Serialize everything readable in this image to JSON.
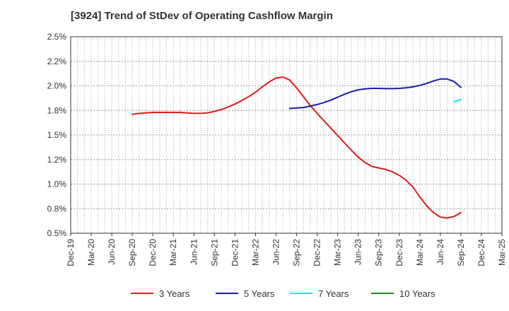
{
  "title": "[3924]  Trend of StDev of Operating Cashflow Margin",
  "chart_data": {
    "type": "line",
    "title": "[3924]  Trend of StDev of Operating Cashflow Margin",
    "xlabel": "",
    "ylabel": "",
    "ylim": [
      0.5,
      2.5
    ],
    "y_ticks": [
      "0.5%",
      "0.8%",
      "1.0%",
      "1.2%",
      "1.5%",
      "1.8%",
      "2.0%",
      "2.2%",
      "2.5%"
    ],
    "x_ticks": [
      "Dec-19",
      "Mar-20",
      "Jun-20",
      "Sep-20",
      "Dec-20",
      "Mar-21",
      "Jun-21",
      "Sep-21",
      "Dec-21",
      "Mar-22",
      "Jun-22",
      "Sep-22",
      "Dec-22",
      "Mar-23",
      "Jun-23",
      "Sep-23",
      "Dec-23",
      "Mar-24",
      "Jun-24",
      "Sep-24",
      "Dec-24",
      "Mar-25"
    ],
    "grid": true,
    "legend_position": "bottom",
    "series": [
      {
        "name": "3 Years",
        "color": "#dd1c1c",
        "points": [
          [
            "Sep-20",
            1.71
          ],
          [
            "Oct-20",
            1.72
          ],
          [
            "Nov-20",
            1.725
          ],
          [
            "Dec-20",
            1.73
          ],
          [
            "Jan-21",
            1.73
          ],
          [
            "Feb-21",
            1.73
          ],
          [
            "Mar-21",
            1.73
          ],
          [
            "Apr-21",
            1.73
          ],
          [
            "May-21",
            1.725
          ],
          [
            "Jun-21",
            1.72
          ],
          [
            "Jul-21",
            1.72
          ],
          [
            "Aug-21",
            1.725
          ],
          [
            "Sep-21",
            1.74
          ],
          [
            "Oct-21",
            1.76
          ],
          [
            "Nov-21",
            1.785
          ],
          [
            "Dec-21",
            1.815
          ],
          [
            "Jan-22",
            1.85
          ],
          [
            "Feb-22",
            1.89
          ],
          [
            "Mar-22",
            1.935
          ],
          [
            "Apr-22",
            1.99
          ],
          [
            "May-22",
            2.04
          ],
          [
            "Jun-22",
            2.08
          ],
          [
            "Jul-22",
            2.09
          ],
          [
            "Aug-22",
            2.06
          ],
          [
            "Sep-22",
            1.98
          ],
          [
            "Oct-22",
            1.89
          ],
          [
            "Nov-22",
            1.8
          ],
          [
            "Dec-22",
            1.72
          ],
          [
            "Jan-23",
            1.645
          ],
          [
            "Feb-23",
            1.57
          ],
          [
            "Mar-23",
            1.495
          ],
          [
            "Apr-23",
            1.42
          ],
          [
            "May-23",
            1.345
          ],
          [
            "Jun-23",
            1.275
          ],
          [
            "Jul-23",
            1.22
          ],
          [
            "Aug-23",
            1.18
          ],
          [
            "Sep-23",
            1.165
          ],
          [
            "Oct-23",
            1.15
          ],
          [
            "Nov-23",
            1.125
          ],
          [
            "Dec-23",
            1.09
          ],
          [
            "Jan-24",
            1.04
          ],
          [
            "Feb-24",
            0.97
          ],
          [
            "Mar-24",
            0.87
          ],
          [
            "Apr-24",
            0.78
          ],
          [
            "May-24",
            0.71
          ],
          [
            "Jun-24",
            0.665
          ],
          [
            "Jul-24",
            0.655
          ],
          [
            "Aug-24",
            0.67
          ],
          [
            "Sep-24",
            0.71
          ]
        ]
      },
      {
        "name": "5 Years",
        "color": "#1a1aaf",
        "points": [
          [
            "Aug-22",
            1.77
          ],
          [
            "Sep-22",
            1.775
          ],
          [
            "Oct-22",
            1.78
          ],
          [
            "Nov-22",
            1.795
          ],
          [
            "Dec-22",
            1.81
          ],
          [
            "Jan-23",
            1.83
          ],
          [
            "Feb-23",
            1.855
          ],
          [
            "Mar-23",
            1.885
          ],
          [
            "Apr-23",
            1.915
          ],
          [
            "May-23",
            1.94
          ],
          [
            "Jun-23",
            1.96
          ],
          [
            "Jul-23",
            1.97
          ],
          [
            "Aug-23",
            1.975
          ],
          [
            "Sep-23",
            1.975
          ],
          [
            "Oct-23",
            1.972
          ],
          [
            "Nov-23",
            1.972
          ],
          [
            "Dec-23",
            1.975
          ],
          [
            "Jan-24",
            1.98
          ],
          [
            "Feb-24",
            1.99
          ],
          [
            "Mar-24",
            2.005
          ],
          [
            "Apr-24",
            2.025
          ],
          [
            "May-24",
            2.05
          ],
          [
            "Jun-24",
            2.07
          ],
          [
            "Jul-24",
            2.07
          ],
          [
            "Aug-24",
            2.045
          ],
          [
            "Sep-24",
            1.985
          ]
        ]
      },
      {
        "name": "7 Years",
        "color": "#22e6e6",
        "points": [
          [
            "Aug-24",
            1.84
          ],
          [
            "Sep-24",
            1.86
          ]
        ]
      },
      {
        "name": "10 Years",
        "color": "#1a8a1a",
        "points": []
      }
    ]
  }
}
